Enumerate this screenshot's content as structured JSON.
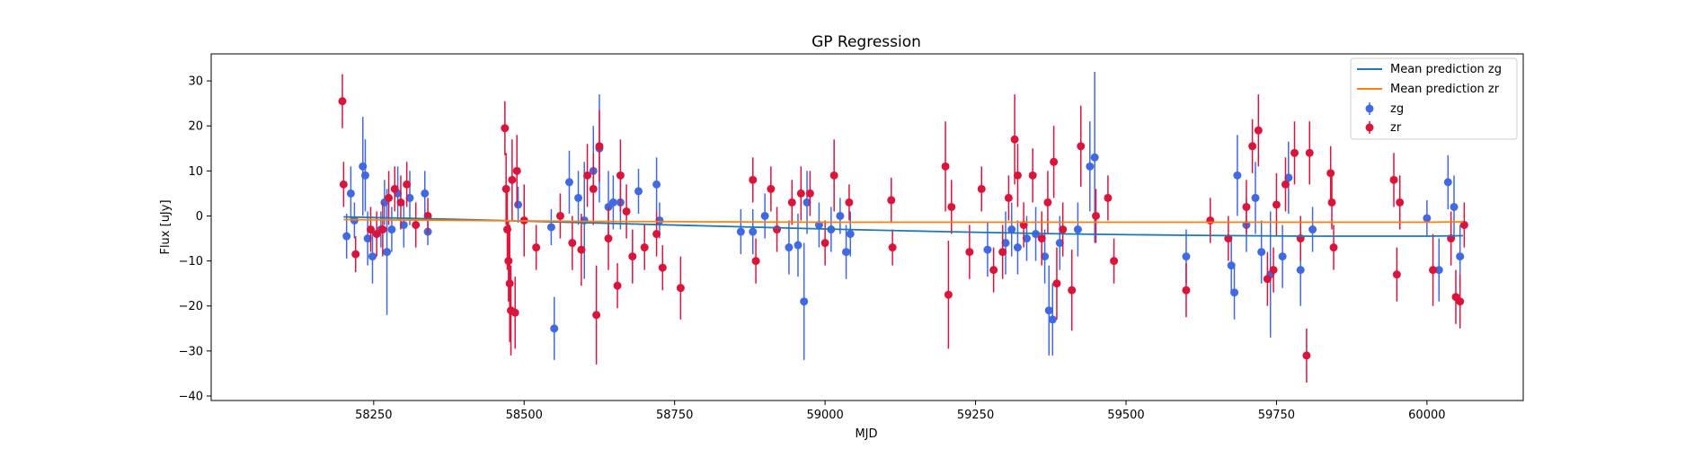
{
  "chart_data": {
    "type": "scatter",
    "title": "GP Regression",
    "xlabel": "MJD",
    "ylabel": "Flux [uJy]",
    "xlim": [
      57980,
      60160
    ],
    "ylim": [
      -41,
      36
    ],
    "xticks": [
      58250,
      58500,
      58750,
      59000,
      59250,
      59500,
      59750,
      60000
    ],
    "yticks": [
      -40,
      -30,
      -20,
      -10,
      0,
      10,
      20,
      30
    ],
    "grid": false,
    "legend": {
      "placement": "top-right",
      "entries": [
        "Mean prediction zg",
        "Mean prediction zr",
        "zg",
        "zr"
      ]
    },
    "series": [
      {
        "name": "Mean prediction zg",
        "kind": "line",
        "color": "#1f77b4",
        "x": [
          58200,
          58400,
          58600,
          58800,
          59000,
          59200,
          59400,
          59600,
          59800,
          60000,
          60060
        ],
        "y": [
          -0.2,
          -0.8,
          -1.5,
          -2.2,
          -2.9,
          -3.5,
          -4.0,
          -4.3,
          -4.5,
          -4.5,
          -4.4
        ]
      },
      {
        "name": "Mean prediction zr",
        "kind": "line",
        "color": "#ff7f0e",
        "x": [
          58200,
          58400,
          58600,
          58800,
          59000,
          59200,
          59400,
          59600,
          59800,
          60000,
          60060
        ],
        "y": [
          -0.8,
          -1.0,
          -1.2,
          -1.3,
          -1.4,
          -1.4,
          -1.4,
          -1.4,
          -1.4,
          -1.4,
          -1.3
        ]
      },
      {
        "name": "zg",
        "kind": "errorbar",
        "color": "#4169e1",
        "points": [
          [
            58205,
            -4.5,
            5
          ],
          [
            58212,
            5,
            6
          ],
          [
            58218,
            -1,
            4
          ],
          [
            58232,
            11,
            11
          ],
          [
            58236,
            9,
            8
          ],
          [
            58240,
            -5,
            6
          ],
          [
            58248,
            -9,
            6
          ],
          [
            58262,
            -3,
            4
          ],
          [
            58268,
            3,
            5
          ],
          [
            58272,
            -8,
            14
          ],
          [
            58280,
            -3,
            5
          ],
          [
            58290,
            5,
            6
          ],
          [
            58300,
            -2,
            5
          ],
          [
            58310,
            4,
            6
          ],
          [
            58335,
            5,
            5
          ],
          [
            58340,
            -3.5,
            3
          ],
          [
            58490,
            2.5,
            4
          ],
          [
            58545,
            -2.5,
            4
          ],
          [
            58550,
            -25,
            7
          ],
          [
            58575,
            7.5,
            7
          ],
          [
            58590,
            4,
            6
          ],
          [
            58600,
            -1,
            13
          ],
          [
            58615,
            10,
            10
          ],
          [
            58625,
            15,
            12
          ],
          [
            58640,
            2,
            8
          ],
          [
            58648,
            3,
            6
          ],
          [
            58660,
            3,
            6
          ],
          [
            58690,
            5.5,
            5
          ],
          [
            58720,
            7,
            6
          ],
          [
            58725,
            -1,
            4
          ],
          [
            58860,
            -3.5,
            5
          ],
          [
            58880,
            -3.5,
            5
          ],
          [
            58900,
            0,
            5
          ],
          [
            58940,
            -7,
            6
          ],
          [
            58955,
            -6.5,
            7
          ],
          [
            58965,
            -19,
            13
          ],
          [
            58970,
            3,
            7
          ],
          [
            58990,
            -2,
            5
          ],
          [
            59010,
            -3,
            5
          ],
          [
            59025,
            0,
            4
          ],
          [
            59035,
            -8,
            6
          ],
          [
            59042,
            -4,
            5
          ],
          [
            59270,
            -7.5,
            6
          ],
          [
            59300,
            -6,
            7
          ],
          [
            59310,
            -3,
            6
          ],
          [
            59320,
            -7,
            6
          ],
          [
            59335,
            -5,
            5
          ],
          [
            59350,
            -4,
            6
          ],
          [
            59365,
            -9,
            6
          ],
          [
            59372,
            -21,
            10
          ],
          [
            59378,
            -23,
            8
          ],
          [
            59390,
            -6,
            6
          ],
          [
            59420,
            -3,
            6
          ],
          [
            59440,
            11,
            10
          ],
          [
            59448,
            13,
            19
          ],
          [
            59600,
            -9,
            6
          ],
          [
            59675,
            -11,
            6
          ],
          [
            59680,
            -17,
            6
          ],
          [
            59685,
            9,
            9
          ],
          [
            59700,
            -2,
            6
          ],
          [
            59715,
            4,
            8
          ],
          [
            59725,
            -8,
            7
          ],
          [
            59740,
            -13,
            14
          ],
          [
            59760,
            -9,
            7
          ],
          [
            59770,
            8.5,
            8
          ],
          [
            59790,
            -12,
            8
          ],
          [
            59810,
            -3,
            5
          ],
          [
            60000,
            -0.5,
            4
          ],
          [
            60020,
            -12,
            7
          ],
          [
            60035,
            7.5,
            6
          ],
          [
            60045,
            2,
            7
          ],
          [
            60055,
            -9,
            7
          ]
        ]
      },
      {
        "name": "zr",
        "kind": "errorbar",
        "color": "#dc143c",
        "points": [
          [
            58198,
            25.5,
            6
          ],
          [
            58200,
            7,
            5
          ],
          [
            58220,
            -8.5,
            4
          ],
          [
            58245,
            -3,
            5
          ],
          [
            58255,
            -4,
            5
          ],
          [
            58265,
            -3,
            6
          ],
          [
            58275,
            4,
            6
          ],
          [
            58285,
            6,
            5
          ],
          [
            58295,
            3,
            6
          ],
          [
            58305,
            7,
            5
          ],
          [
            58320,
            -2,
            5
          ],
          [
            58340,
            0,
            4
          ],
          [
            58468,
            19.5,
            6
          ],
          [
            58470,
            6,
            8
          ],
          [
            58472,
            -3,
            9
          ],
          [
            58474,
            -10,
            9
          ],
          [
            58476,
            -15,
            13
          ],
          [
            58478,
            -21,
            10
          ],
          [
            58480,
            8,
            9
          ],
          [
            58485,
            -21.5,
            8
          ],
          [
            58488,
            10,
            8
          ],
          [
            58500,
            -1,
            8
          ],
          [
            58520,
            -7,
            5
          ],
          [
            58560,
            0,
            5
          ],
          [
            58580,
            -6,
            6
          ],
          [
            58595,
            -7.5,
            8
          ],
          [
            58605,
            9,
            7
          ],
          [
            58615,
            6,
            8
          ],
          [
            58620,
            -22,
            11
          ],
          [
            58625,
            15.5,
            8
          ],
          [
            58640,
            -5,
            7
          ],
          [
            58655,
            -15.5,
            5
          ],
          [
            58660,
            9,
            8
          ],
          [
            58670,
            1,
            6
          ],
          [
            58680,
            -9,
            6
          ],
          [
            58700,
            -7,
            5
          ],
          [
            58720,
            -4,
            5
          ],
          [
            58730,
            -11.5,
            5
          ],
          [
            58760,
            -16,
            7
          ],
          [
            58880,
            8,
            5
          ],
          [
            58885,
            -10,
            5
          ],
          [
            58910,
            6,
            5
          ],
          [
            58920,
            -3,
            5
          ],
          [
            58945,
            3,
            5
          ],
          [
            58960,
            5,
            6
          ],
          [
            58975,
            5,
            5
          ],
          [
            59000,
            -6,
            5
          ],
          [
            59015,
            9,
            8
          ],
          [
            59040,
            3,
            4
          ],
          [
            59110,
            3.5,
            5
          ],
          [
            59112,
            -7,
            4
          ],
          [
            59200,
            11,
            10
          ],
          [
            59205,
            -17.5,
            12
          ],
          [
            59210,
            2,
            6
          ],
          [
            59240,
            -8,
            6
          ],
          [
            59260,
            6,
            5
          ],
          [
            59280,
            -12,
            5
          ],
          [
            59295,
            -8,
            6
          ],
          [
            59305,
            4,
            5
          ],
          [
            59315,
            17,
            10
          ],
          [
            59320,
            9,
            7
          ],
          [
            59330,
            -2,
            5
          ],
          [
            59345,
            9,
            6
          ],
          [
            59360,
            -5,
            6
          ],
          [
            59370,
            3,
            7
          ],
          [
            59380,
            12,
            8
          ],
          [
            59385,
            -15,
            8
          ],
          [
            59395,
            -3,
            6
          ],
          [
            59410,
            -16.5,
            9
          ],
          [
            59425,
            15.5,
            9
          ],
          [
            59450,
            0,
            6
          ],
          [
            59470,
            4,
            5
          ],
          [
            59480,
            -10,
            5
          ],
          [
            59600,
            -16.5,
            6
          ],
          [
            59640,
            -1,
            5
          ],
          [
            59670,
            -5,
            5
          ],
          [
            59700,
            2,
            6
          ],
          [
            59710,
            15.5,
            6
          ],
          [
            59720,
            19,
            8
          ],
          [
            59735,
            -14,
            6
          ],
          [
            59745,
            -12,
            5
          ],
          [
            59750,
            2.5,
            7
          ],
          [
            59765,
            7,
            6
          ],
          [
            59780,
            14,
            7
          ],
          [
            59790,
            -5,
            5
          ],
          [
            59800,
            -31,
            6
          ],
          [
            59805,
            14,
            7
          ],
          [
            59840,
            9.5,
            6
          ],
          [
            59845,
            -7,
            5
          ],
          [
            59842,
            3,
            6
          ],
          [
            59945,
            8,
            6
          ],
          [
            59950,
            -13,
            6
          ],
          [
            59955,
            3,
            6
          ],
          [
            60010,
            -12,
            8
          ],
          [
            60040,
            -5,
            6
          ],
          [
            60048,
            -18,
            6
          ],
          [
            60055,
            -19,
            6
          ],
          [
            60062,
            -2,
            5
          ]
        ]
      }
    ]
  }
}
